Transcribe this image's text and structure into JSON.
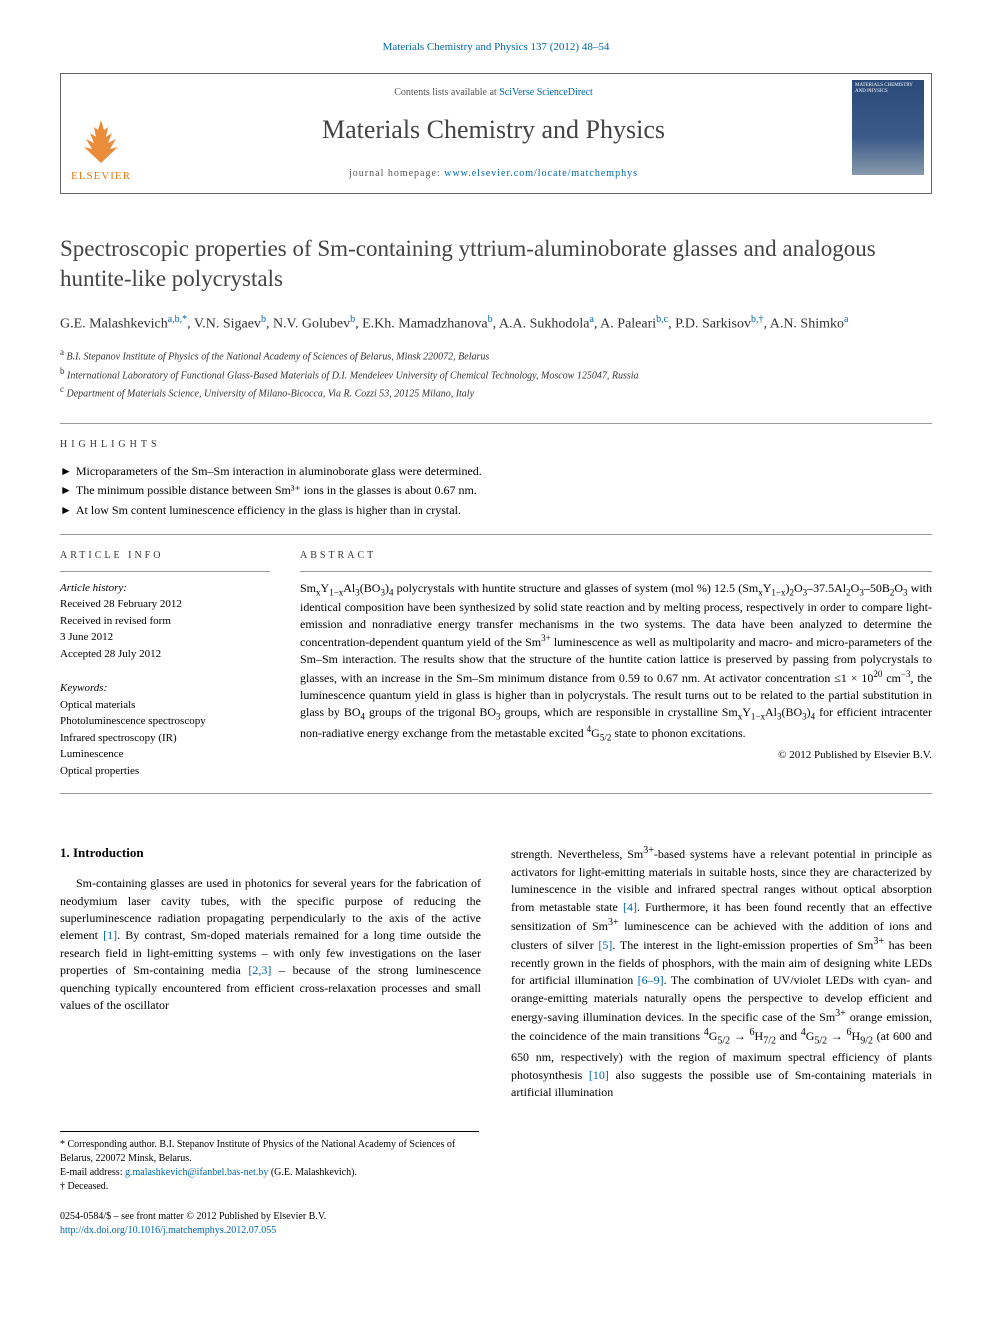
{
  "journal_ref": "Materials Chemistry and Physics 137 (2012) 48–54",
  "header": {
    "publisher": "ELSEVIER",
    "contents_prefix": "Contents lists available at ",
    "contents_link": "SciVerse ScienceDirect",
    "journal_title": "Materials Chemistry and Physics",
    "homepage_prefix": "journal homepage: ",
    "homepage_url": "www.elsevier.com/locate/matchemphys",
    "cover_title": "MATERIALS CHEMISTRY AND PHYSICS",
    "logo_color": "#e67817"
  },
  "title": "Spectroscopic properties of Sm-containing yttrium-aluminoborate glasses and analogous huntite-like polycrystals",
  "authors_html": "G.E. Malashkevich<sup>a,b,*</sup>, V.N. Sigaev<sup>b</sup>, N.V. Golubev<sup>b</sup>, E.Kh. Mamadzhanova<sup>b</sup>, A.A. Sukhodola<sup>a</sup>, A. Paleari<sup>b,c</sup>, P.D. Sarkisov<sup>b,†</sup>, A.N. Shimko<sup>a</sup>",
  "affiliations": [
    {
      "marker": "a",
      "text": "B.I. Stepanov Institute of Physics of the National Academy of Sciences of Belarus, Minsk 220072, Belarus"
    },
    {
      "marker": "b",
      "text": "International Laboratory of Functional Glass-Based Materials of D.I. Mendeleev University of Chemical Technology, Moscow 125047, Russia"
    },
    {
      "marker": "c",
      "text": "Department of Materials Science, University of Milano-Bicocca, Via R. Cozzi 53, 20125 Milano, Italy"
    }
  ],
  "highlights_label": "HIGHLIGHTS",
  "highlights": [
    "Microparameters of the Sm–Sm interaction in aluminoborate glass were determined.",
    "The minimum possible distance between Sm³⁺ ions in the glasses is about 0.67 nm.",
    "At low Sm content luminescence efficiency in the glass is higher than in crystal."
  ],
  "article_info": {
    "label": "ARTICLE INFO",
    "history_label": "Article history:",
    "history": [
      "Received 28 February 2012",
      "Received in revised form",
      "3 June 2012",
      "Accepted 28 July 2012"
    ],
    "keywords_label": "Keywords:",
    "keywords": [
      "Optical materials",
      "Photoluminescence spectroscopy",
      "Infrared spectroscopy (IR)",
      "Luminescence",
      "Optical properties"
    ]
  },
  "abstract": {
    "label": "ABSTRACT",
    "text_html": "Sm<sub>x</sub>Y<sub>1−x</sub>Al<sub>3</sub>(BO<sub>3</sub>)<sub>4</sub> polycrystals with huntite structure and glasses of system (mol %) 12.5 (Sm<sub>x</sub>Y<sub>1−x</sub>)<sub>2</sub>O<sub>3</sub>–37.5Al<sub>2</sub>O<sub>3</sub>–50B<sub>2</sub>O<sub>3</sub> with identical composition have been synthesized by solid state reaction and by melting process, respectively in order to compare light-emission and nonradiative energy transfer mechanisms in the two systems. The data have been analyzed to determine the concentration-dependent quantum yield of the Sm<sup>3+</sup> luminescence as well as multipolarity and macro- and micro-parameters of the Sm–Sm interaction. The results show that the structure of the huntite cation lattice is preserved by passing from polycrystals to glasses, with an increase in the Sm–Sm minimum distance from 0.59 to 0.67 nm. At activator concentration ≤1 × 10<sup>20</sup> cm<sup>−3</sup>, the luminescence quantum yield in glass is higher than in polycrystals. The result turns out to be related to the partial substitution in glass by BO<sub>4</sub> groups of the trigonal BO<sub>3</sub> groups, which are responsible in crystalline Sm<sub>x</sub>Y<sub>1−x</sub>Al<sub>3</sub>(BO<sub>3</sub>)<sub>4</sub> for efficient intracenter non-radiative energy exchange from the metastable excited <sup>4</sup>G<sub>5/2</sub> state to phonon excitations.",
    "copyright": "© 2012 Published by Elsevier B.V."
  },
  "intro": {
    "heading": "1. Introduction",
    "col1_html": "Sm-containing glasses are used in photonics for several years for the fabrication of neodymium laser cavity tubes, with the specific purpose of reducing the superluminescence radiation propagating perpendicularly to the axis of the active element <a href='#'>[1]</a>. By contrast, Sm-doped materials remained for a long time outside the research field in light-emitting systems – with only few investigations on the laser properties of Sm-containing media <a href='#'>[2,3]</a> – because of the strong luminescence quenching typically encountered from efficient cross-relaxation processes and small values of the oscillator",
    "col2_html": "strength. Nevertheless, Sm<sup>3+</sup>-based systems have a relevant potential in principle as activators for light-emitting materials in suitable hosts, since they are characterized by luminescence in the visible and infrared spectral ranges without optical absorption from metastable state <a href='#'>[4]</a>. Furthermore, it has been found recently that an effective sensitization of Sm<sup>3+</sup> luminescence can be achieved with the addition of ions and clusters of silver <a href='#'>[5]</a>. The interest in the light-emission properties of Sm<sup>3+</sup> has been recently grown in the fields of phosphors, with the main aim of designing white LEDs for artificial illumination <a href='#'>[6–9]</a>. The combination of UV/violet LEDs with cyan- and orange-emitting materials naturally opens the perspective to develop efficient and energy-saving illumination devices. In the specific case of the Sm<sup>3+</sup> orange emission, the coincidence of the main transitions <sup>4</sup>G<sub>5/2</sub> → <sup>6</sup>H<sub>7/2</sub> and <sup>4</sup>G<sub>5/2</sub> → <sup>6</sup>H<sub>9/2</sub> (at 600 and 650 nm, respectively) with the region of maximum spectral efficiency of plants photosynthesis <a href='#'>[10]</a> also suggests the possible use of Sm-containing materials in artificial illumination"
  },
  "footnotes": {
    "corresponding": "* Corresponding author. B.I. Stepanov Institute of Physics of the National Academy of Sciences of Belarus, 220072 Minsk, Belarus.",
    "email_label": "E-mail address: ",
    "email": "g.malashkevich@ifanbel.bas-net.by",
    "email_author": " (G.E. Malashkevich).",
    "deceased": "† Deceased."
  },
  "footer": {
    "issn": "0254-0584/$ – see front matter © 2012 Published by Elsevier B.V.",
    "doi": "http://dx.doi.org/10.1016/j.matchemphys.2012.07.055"
  },
  "colors": {
    "link": "#0066aa",
    "elsevier_orange": "#e67817",
    "text": "#000000",
    "muted": "#555555",
    "rule": "#999999"
  }
}
